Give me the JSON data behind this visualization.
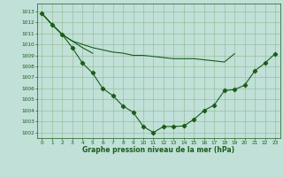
{
  "title": "Graphe pression niveau de la mer (hPa)",
  "background_color": "#c0e0d8",
  "grid_color": "#90b890",
  "line_color": "#1a5c1a",
  "marker_color": "#1a5c1a",
  "xlim": [
    -0.5,
    23.5
  ],
  "ylim": [
    1001.5,
    1013.7
  ],
  "yticks": [
    1002,
    1003,
    1004,
    1005,
    1006,
    1007,
    1008,
    1009,
    1010,
    1011,
    1012,
    1013
  ],
  "xticks": [
    0,
    1,
    2,
    3,
    4,
    5,
    6,
    7,
    8,
    9,
    10,
    11,
    12,
    13,
    14,
    15,
    16,
    17,
    18,
    19,
    20,
    21,
    22,
    23
  ],
  "series": [
    {
      "x": [
        0,
        1,
        2,
        3,
        4,
        5,
        6,
        7,
        8,
        9,
        10,
        11,
        12,
        13,
        14,
        15,
        16,
        17,
        18,
        19,
        20,
        21,
        22,
        23
      ],
      "y": [
        1012.8,
        1011.8,
        1010.9,
        1009.7,
        1008.3,
        1007.4,
        1006.0,
        1005.35,
        1004.4,
        1003.85,
        1002.55,
        1002.0,
        1002.55,
        1002.55,
        1002.6,
        1003.2,
        1004.0,
        1004.5,
        1005.8,
        1005.9,
        1006.3,
        1007.6,
        1008.3,
        1009.15
      ],
      "has_markers": true
    },
    {
      "x": [
        0,
        1,
        2,
        3,
        4,
        5,
        6,
        7,
        8,
        9,
        10,
        11,
        12,
        13,
        14,
        15,
        16,
        17,
        18,
        19
      ],
      "y": [
        1012.8,
        1011.8,
        1010.9,
        1010.3,
        1010.0,
        1009.7,
        1009.5,
        1009.3,
        1009.2,
        1009.0,
        1009.0,
        1008.9,
        1008.8,
        1008.7,
        1008.7,
        1008.7,
        1008.6,
        1008.5,
        1008.4,
        1009.15
      ],
      "has_markers": false
    },
    {
      "x": [
        0,
        1,
        2,
        3,
        4,
        5
      ],
      "y": [
        1012.8,
        1011.8,
        1010.9,
        1010.3,
        1009.7,
        1009.2
      ],
      "has_markers": false
    }
  ],
  "tick_fontsize": 4.2,
  "label_fontsize": 5.5,
  "linewidth": 0.8,
  "markersize": 2.2
}
